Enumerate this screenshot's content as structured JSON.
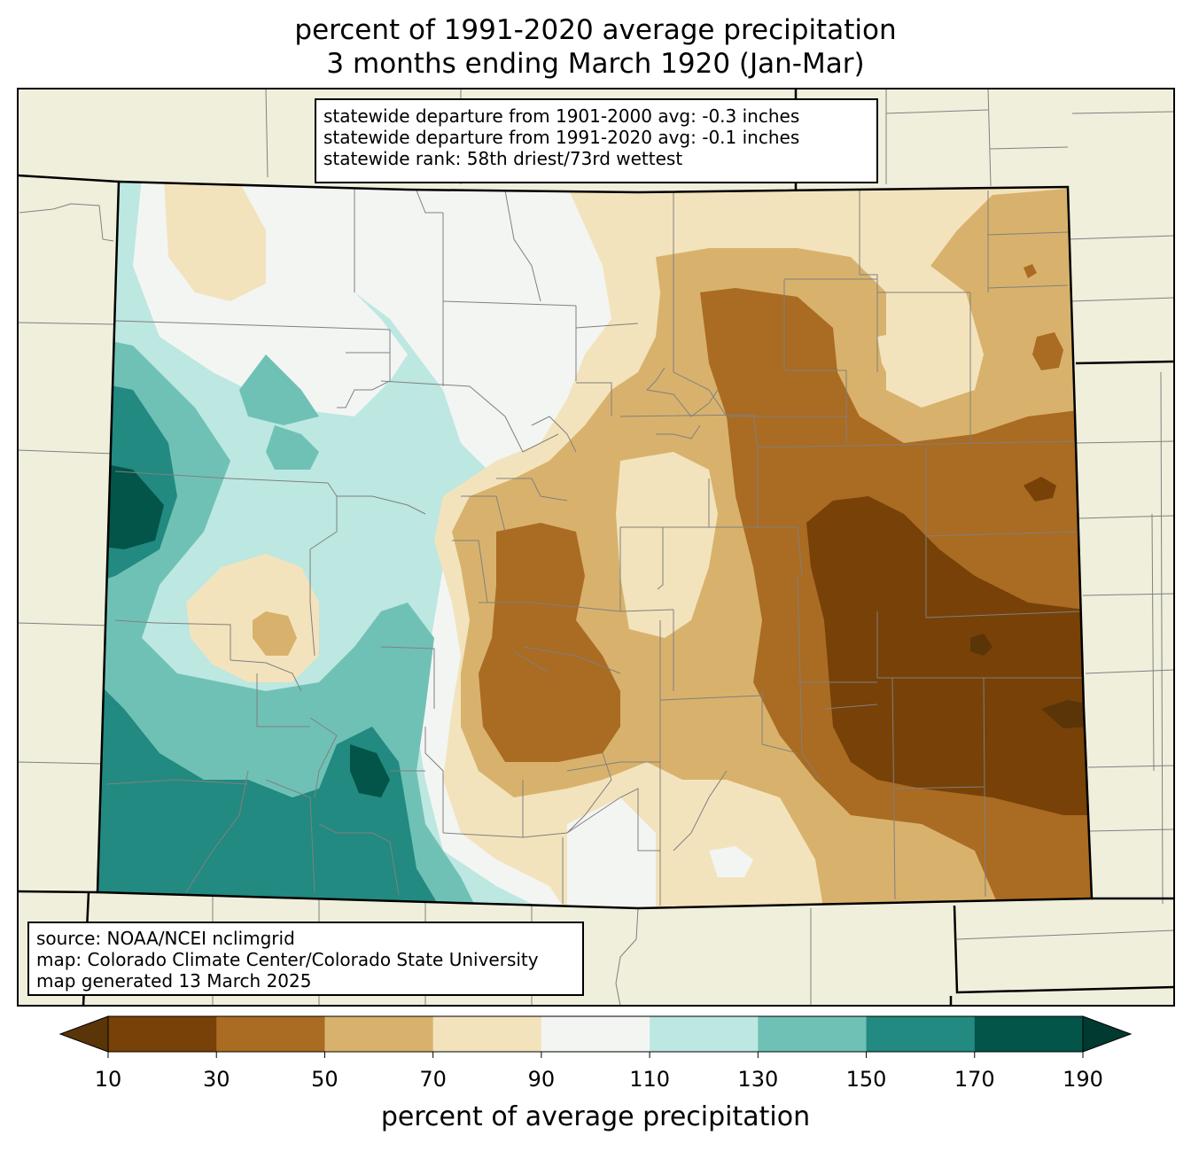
{
  "title_line1": "percent of 1991-2020 average precipitation",
  "title_line2": "3 months ending March 1920 (Jan-Mar)",
  "stats": {
    "line1": "statewide departure from 1901-2000 avg: -0.3 inches",
    "line2": "statewide departure from 1991-2020 avg: -0.1 inches",
    "line3": "statewide rank: 58th driest/73rd wettest"
  },
  "source": {
    "line1": "source: NOAA/NCEI nclimgrid",
    "line2": "map: Colorado Climate Center/Colorado State University",
    "line3": "map generated 13 March 2025"
  },
  "colorbar": {
    "title": "percent of average precipitation",
    "ticks": [
      "10",
      "30",
      "50",
      "70",
      "90",
      "110",
      "130",
      "150",
      "170",
      "190"
    ],
    "colors": [
      "#5a3508",
      "#774108",
      "#aa6b22",
      "#d8b26c",
      "#f3e3bc",
      "#f3f5f3",
      "#bde7e1",
      "#70c1b5",
      "#228a80",
      "#035449",
      "#003a31"
    ]
  },
  "map_colors": {
    "land_outside": "#f0efdc",
    "state_border": "#000000",
    "county_border": "#808080"
  }
}
